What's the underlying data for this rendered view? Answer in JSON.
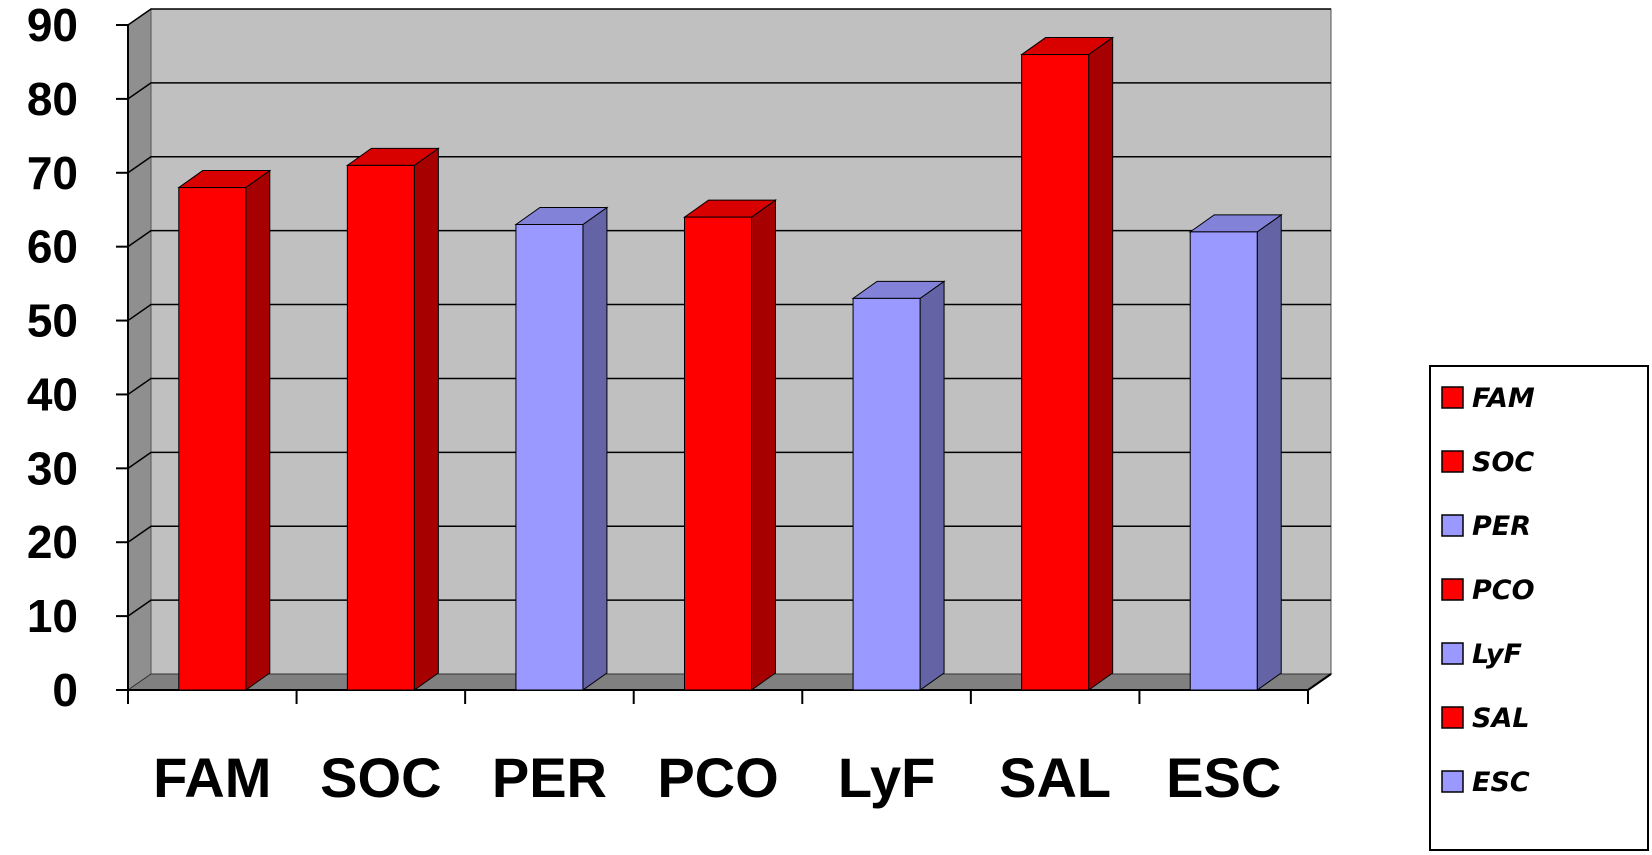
{
  "chart_data": {
    "type": "bar",
    "three_d": true,
    "categories": [
      "FAM",
      "SOC",
      "PER",
      "PCO",
      "LyF",
      "SAL",
      "ESC"
    ],
    "values": [
      68,
      71,
      63,
      64,
      53,
      86,
      62
    ],
    "bar_colors": [
      "#ff0000",
      "#ff0000",
      "#9999ff",
      "#ff0000",
      "#9999ff",
      "#ff0000",
      "#9999ff"
    ],
    "ylim": [
      0,
      90
    ],
    "yticks": [
      0,
      10,
      20,
      30,
      40,
      50,
      60,
      70,
      80,
      90
    ],
    "grid": true,
    "legend": {
      "placement": "right",
      "entries": [
        {
          "label": "FAM",
          "color": "#ff0000"
        },
        {
          "label": "SOC",
          "color": "#ff0000"
        },
        {
          "label": "PER",
          "color": "#9999ff"
        },
        {
          "label": "PCO",
          "color": "#ff0000"
        },
        {
          "label": "LyF",
          "color": "#9999ff"
        },
        {
          "label": "SAL",
          "color": "#ff0000"
        },
        {
          "label": "ESC",
          "color": "#9999ff"
        }
      ]
    },
    "colors": {
      "wall": "#c0c0c0",
      "floor": "#808080",
      "side_wall": "#8f8f8f"
    }
  }
}
